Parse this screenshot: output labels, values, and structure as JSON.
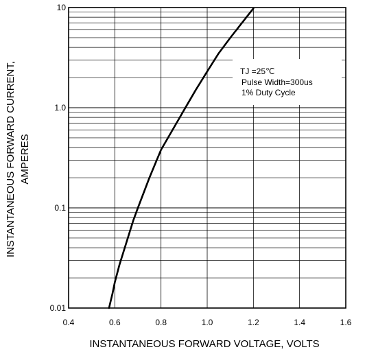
{
  "chart_data": {
    "type": "line",
    "xscale": "linear",
    "yscale": "log",
    "xlim": [
      0.4,
      1.6
    ],
    "ylim": [
      0.01,
      10
    ],
    "grid": true,
    "xlabel": "INSTANTANEOUS FORWARD VOLTAGE, VOLTS",
    "ylabel_lines": [
      "INSTANTANEOUS FORWARD CURRENT,",
      "AMPERES"
    ],
    "x_ticks": [
      {
        "value": 0.4,
        "label": "0.4"
      },
      {
        "value": 0.6,
        "label": "0.6"
      },
      {
        "value": 0.8,
        "label": "0.8"
      },
      {
        "value": 1.0,
        "label": "1.0"
      },
      {
        "value": 1.2,
        "label": "1.2"
      },
      {
        "value": 1.4,
        "label": "1.4"
      },
      {
        "value": 1.6,
        "label": "1.6"
      }
    ],
    "y_ticks": [
      {
        "value": 10,
        "label": "10"
      },
      {
        "value": 1,
        "label": "1.0"
      },
      {
        "value": 0.1,
        "label": "0.1"
      },
      {
        "value": 0.01,
        "label": "0.01"
      }
    ],
    "annotations": [
      "TJ =25℃",
      "Pulse Width=300us",
      "1% Duty Cycle"
    ],
    "series": [
      {
        "x": [
          0.575,
          0.59,
          0.6,
          0.62,
          0.65,
          0.68,
          0.7,
          0.75,
          0.8,
          0.85,
          0.9,
          0.95,
          1.0,
          1.05,
          1.1,
          1.15,
          1.2
        ],
        "y": [
          0.01,
          0.014,
          0.018,
          0.027,
          0.045,
          0.075,
          0.1,
          0.2,
          0.38,
          0.6,
          0.95,
          1.5,
          2.3,
          3.5,
          5.0,
          7.0,
          9.8
        ]
      }
    ]
  }
}
